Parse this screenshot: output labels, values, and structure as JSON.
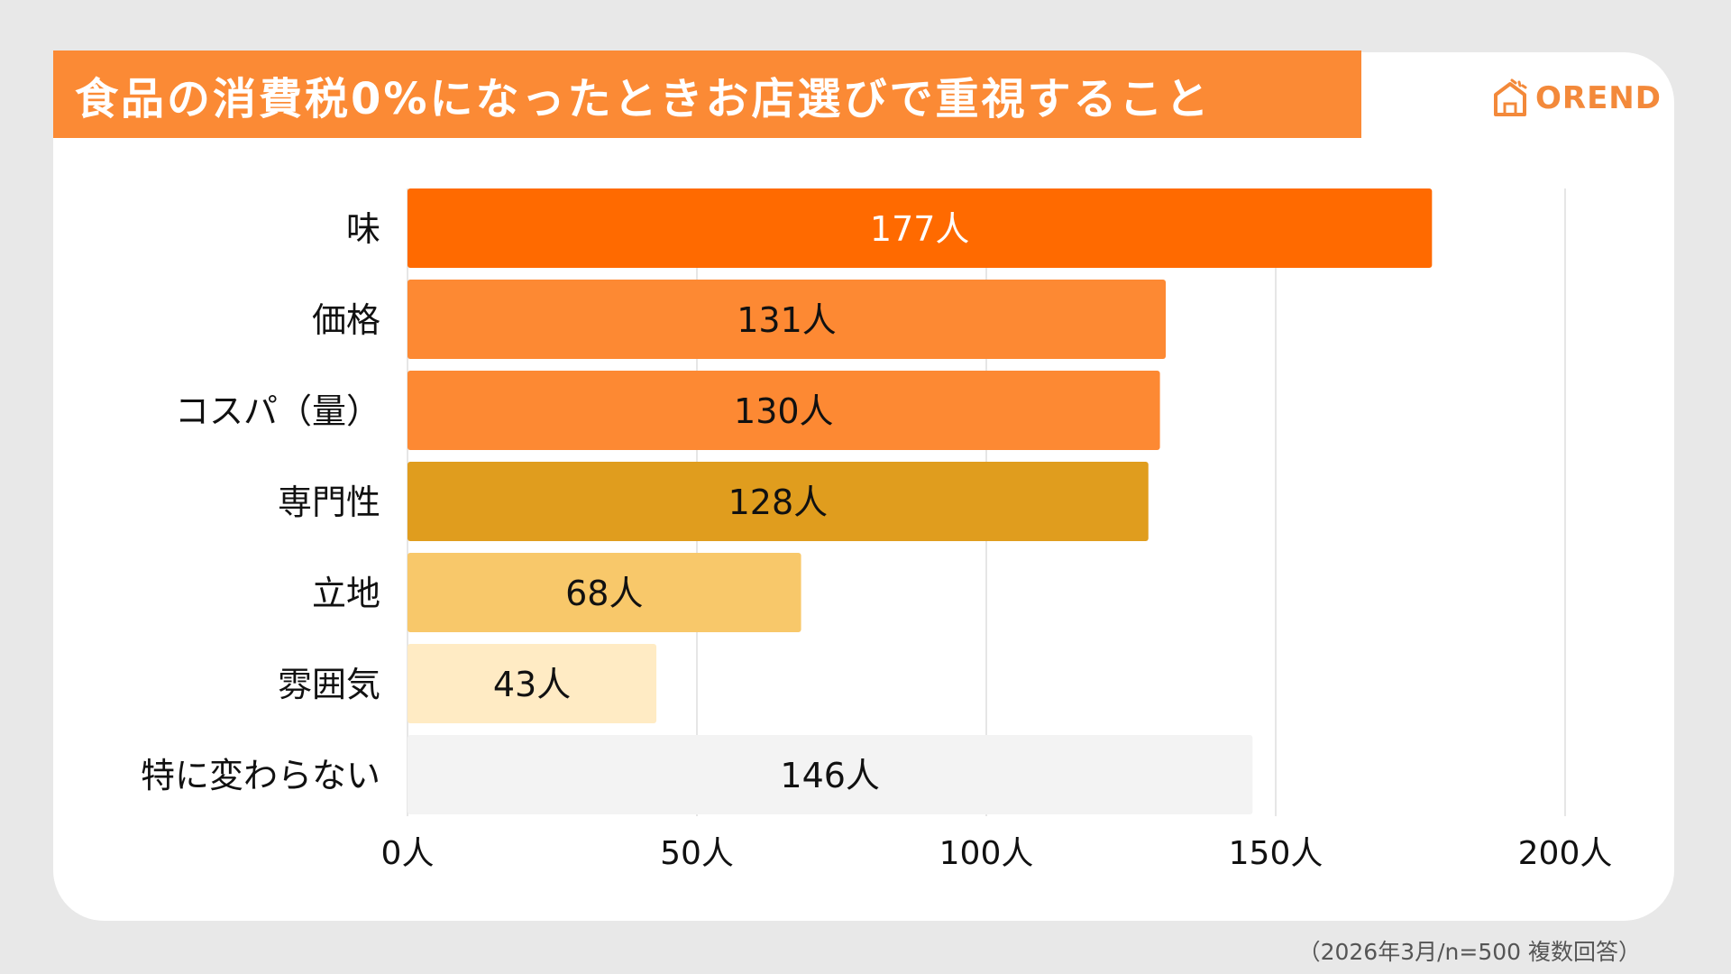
{
  "header": {
    "title": "食品の消費税0%になったときお店選びで重視すること",
    "brand": "OREND"
  },
  "footnote": "（2026年3月/n=500 複数回答）",
  "colors": {
    "title_bg": "#fb8a35",
    "brand": "#f3893a"
  },
  "chart_data": {
    "type": "bar",
    "orientation": "horizontal",
    "title": "食品の消費税0%になったときお店選びで重視すること",
    "categories": [
      "味",
      "価格",
      "コスパ（量）",
      "専門性",
      "立地",
      "雰囲気",
      "特に変わらない"
    ],
    "values": [
      177,
      131,
      130,
      128,
      68,
      43,
      146
    ],
    "value_labels": [
      "177人",
      "131人",
      "130人",
      "128人",
      "68人",
      "43人",
      "146人"
    ],
    "bar_colors": [
      "#ff6a00",
      "#fd8933",
      "#fd8933",
      "#e09d1e",
      "#f8c86a",
      "#ffebc4",
      "#f3f3f3"
    ],
    "label_colors": [
      "#ffffff",
      "#111111",
      "#111111",
      "#111111",
      "#111111",
      "#111111",
      "#111111"
    ],
    "xlim": [
      0,
      200
    ],
    "ticks": [
      0,
      50,
      100,
      150,
      200
    ],
    "tick_labels": [
      "0人",
      "50人",
      "100人",
      "150人",
      "200人"
    ],
    "grid": true,
    "legend": "none"
  }
}
